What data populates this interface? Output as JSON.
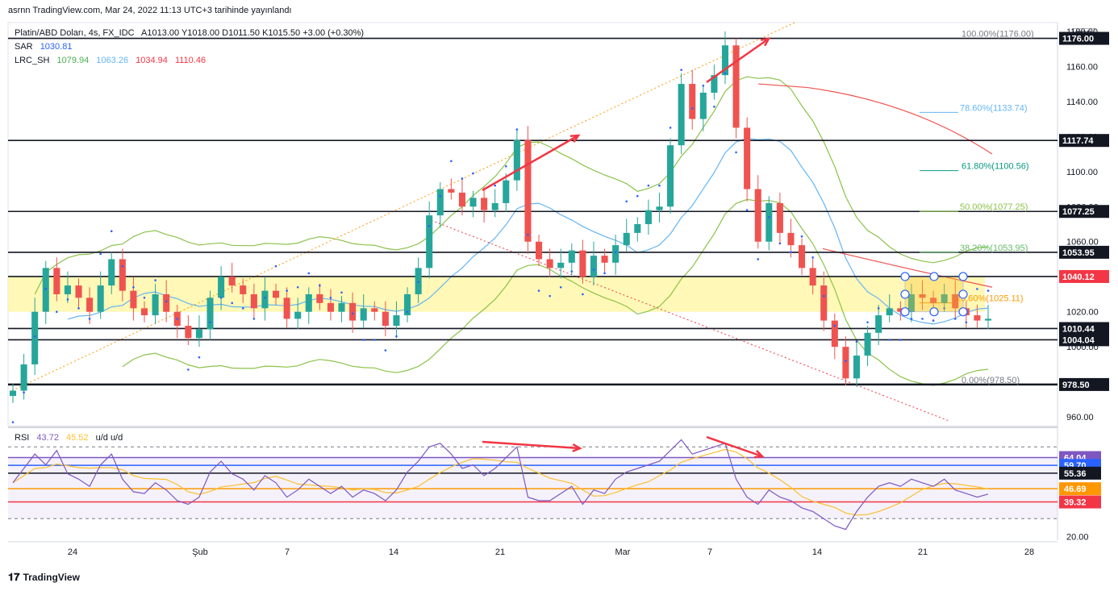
{
  "header": {
    "published": "asrnn TradingView.com, Mar 24, 2022 11:13 UTC+3 tarihinde yayınlandı"
  },
  "legend": {
    "symbol": "Platin/ABD Doları, 4s, FX_IDC",
    "ohlc": "A1013.00  Y1018.00  D1011.50  K1015.50  +3.00 (+0.30%)",
    "sar_label": "SAR",
    "sar_value": "1030.81",
    "lrc_label": "LRC_SH",
    "lrc_values": [
      "1079.94",
      "1063.26",
      "1034.94",
      "1110.46"
    ],
    "rsi_label": "RSI",
    "rsi_value": "43.72",
    "rsi_ma": "45.52",
    "rsi_extra": "u/d  u/d"
  },
  "colors": {
    "up": "#26a69a",
    "down": "#ef5350",
    "zone": "#fff59d",
    "sar": "#2962ff",
    "lrc_mid": "#8bc34a",
    "lrc_top": "#ef5350",
    "lrc_blue": "#64b5f6",
    "rsi": "#7e57c2",
    "rsi_ma": "#fbc02d",
    "arrow": "#f23645"
  },
  "currency": "USD",
  "footer": {
    "brand": "TradingView"
  },
  "chart_data": [
    {
      "type": "candlestick",
      "title": "Platin/ABD Doları, 4s, FX_IDC",
      "x_ticks": [
        "24",
        "Şub",
        "7",
        "14",
        "21",
        "Mar",
        "7",
        "14",
        "21",
        "28"
      ],
      "y_ticks": [
        "960.00",
        "980.00",
        "1000.00",
        "1020.00",
        "1040.00",
        "1060.00",
        "1080.00",
        "1100.00",
        "1120.00",
        "1140.00",
        "1160.00",
        "1180.00"
      ],
      "ylim": [
        955,
        1185
      ],
      "close_path": [
        975,
        990,
        1020,
        1045,
        1030,
        1035,
        1028,
        1020,
        1035,
        1050,
        1032,
        1022,
        1018,
        1030,
        1020,
        1012,
        1005,
        1010,
        1028,
        1040,
        1035,
        1030,
        1022,
        1032,
        1028,
        1016,
        1020,
        1030,
        1025,
        1020,
        1025,
        1015,
        1022,
        1020,
        1012,
        1018,
        1030,
        1045,
        1075,
        1090,
        1088,
        1080,
        1085,
        1078,
        1082,
        1095,
        1118,
        1060,
        1050,
        1045,
        1048,
        1055,
        1040,
        1052,
        1048,
        1058,
        1065,
        1070,
        1078,
        1080,
        1115,
        1150,
        1130,
        1145,
        1155,
        1172,
        1125,
        1090,
        1060,
        1082,
        1065,
        1058,
        1045,
        1035,
        1015,
        1000,
        982,
        995,
        1008,
        1018,
        1022,
        1020,
        1030,
        1028,
        1025,
        1030,
        1022,
        1018,
        1015,
        1016
      ],
      "horizontal_levels": [
        {
          "value": 1176.0,
          "label": "1176.00"
        },
        {
          "value": 1117.74,
          "label": "1117.74"
        },
        {
          "value": 1077.25,
          "label": "1077.25"
        },
        {
          "value": 1053.95,
          "label": "1053.95"
        },
        {
          "value": 1040.12,
          "label": "1040.12"
        },
        {
          "value": 1010.44,
          "label": "1010.44"
        },
        {
          "value": 1004.04,
          "label": "1004.04"
        },
        {
          "value": 978.5,
          "label": "978.50"
        }
      ],
      "highlight_zone": [
        1020,
        1040.12
      ],
      "fibonacci": [
        {
          "value": 1176.0,
          "label": "100.00%(1176.00)",
          "color": "#787b86"
        },
        {
          "value": 1133.74,
          "label": "78.60%(1133.74)",
          "color": "#64b5f6"
        },
        {
          "value": 1100.56,
          "label": "61.80%(1100.56)",
          "color": "#089981"
        },
        {
          "value": 1077.25,
          "label": "50.00%(1077.25)",
          "color": "#8bc34a"
        },
        {
          "value": 1053.95,
          "label": "38.20%(1053.95)",
          "color": "#66bb6a"
        },
        {
          "value": 1025.11,
          "label": "23.60%(1025.11)",
          "color": "#ff9800"
        },
        {
          "value": 978.5,
          "label": "0.00%(978.50)",
          "color": "#787b86"
        }
      ]
    },
    {
      "type": "line",
      "title": "RSI",
      "y_ticks": [
        "20.00"
      ],
      "ylim": [
        18,
        80
      ],
      "levels": [
        {
          "value": 64.04,
          "label": "64.04",
          "color": "#7e57c2"
        },
        {
          "value": 59.7,
          "label": "59.70",
          "color": "#2962ff"
        },
        {
          "value": 55.36,
          "label": "55.36",
          "color": "#131722"
        },
        {
          "value": 46.69,
          "label": "46.69",
          "color": "#ff9800"
        },
        {
          "value": 39.32,
          "label": "39.32",
          "color": "#f23645"
        }
      ],
      "rsi_path": [
        50,
        58,
        66,
        60,
        68,
        55,
        52,
        48,
        60,
        66,
        52,
        45,
        44,
        50,
        46,
        40,
        38,
        42,
        56,
        62,
        55,
        52,
        46,
        54,
        50,
        42,
        46,
        52,
        48,
        44,
        48,
        42,
        46,
        44,
        40,
        46,
        56,
        62,
        70,
        72,
        66,
        58,
        60,
        54,
        58,
        64,
        70,
        42,
        40,
        40,
        44,
        48,
        38,
        46,
        44,
        52,
        56,
        58,
        60,
        62,
        68,
        74,
        66,
        68,
        70,
        72,
        52,
        42,
        38,
        46,
        42,
        40,
        36,
        34,
        30,
        26,
        24,
        34,
        42,
        48,
        50,
        48,
        52,
        50,
        48,
        52,
        46,
        44,
        42,
        43.72
      ]
    }
  ]
}
